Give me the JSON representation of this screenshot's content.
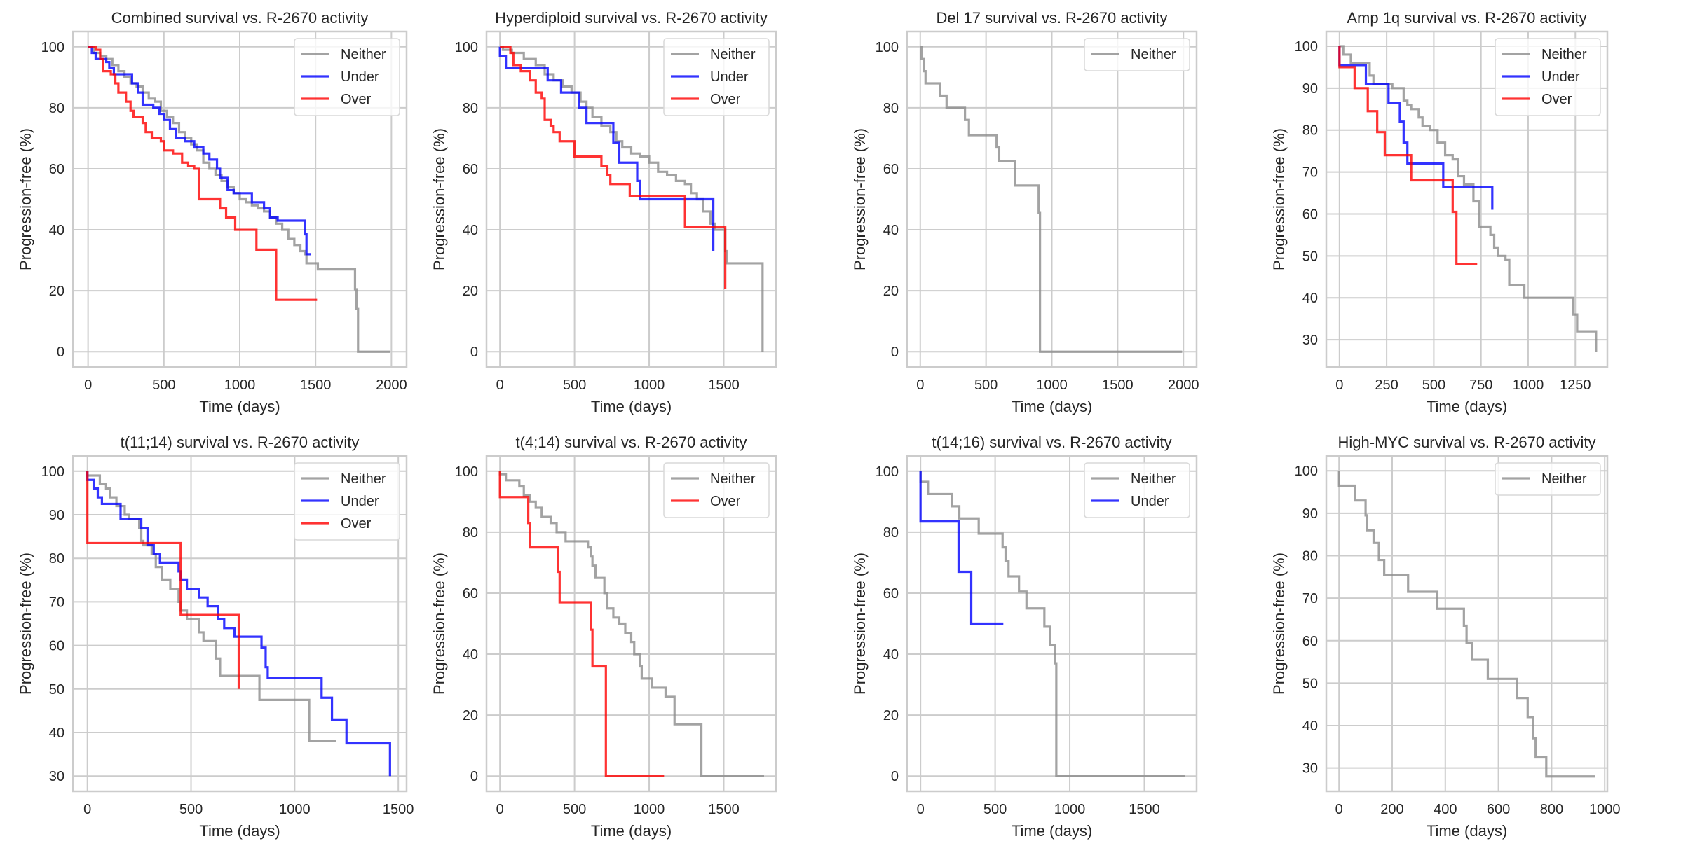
{
  "figure": {
    "colors": {
      "Neither": "#8c8c8c",
      "Under": "#0000ff",
      "Over": "#ff0000",
      "grid": "#cccccc",
      "frame": "#cccccc",
      "legend_border": "#d9d9d9",
      "text": "#262626"
    }
  },
  "chart_data": [
    {
      "type": "line",
      "title": "Combined survival vs. R-2670 activity",
      "xlabel": "Time (days)",
      "ylabel": "Progression-free (%)",
      "xlim": [
        -100,
        2100
      ],
      "ylim": [
        -5,
        105
      ],
      "xticks": [
        0,
        500,
        1000,
        1500,
        2000
      ],
      "yticks": [
        0,
        20,
        40,
        60,
        80,
        100
      ],
      "grid": true,
      "legend": "top-right",
      "series": [
        {
          "name": "Neither",
          "x": [
            0,
            40,
            80,
            120,
            160,
            200,
            240,
            280,
            320,
            360,
            400,
            440,
            480,
            520,
            560,
            600,
            640,
            680,
            720,
            760,
            800,
            840,
            880,
            920,
            960,
            1000,
            1040,
            1080,
            1120,
            1160,
            1200,
            1240,
            1280,
            1320,
            1360,
            1400,
            1430,
            1440,
            1500,
            1515,
            1760,
            1770,
            1780,
            1990
          ],
          "y": [
            100,
            98,
            97,
            96,
            94,
            92,
            90,
            88,
            87,
            85,
            83,
            82,
            79,
            77,
            75,
            72,
            70,
            68,
            66,
            62,
            60,
            58,
            56,
            54,
            52,
            50,
            49,
            48,
            47,
            46,
            44,
            42,
            40,
            37,
            35,
            33,
            32,
            29,
            29,
            27,
            20.5,
            14,
            0,
            0
          ]
        },
        {
          "name": "Under",
          "x": [
            0,
            25,
            50,
            120,
            140,
            170,
            260,
            290,
            330,
            360,
            430,
            470,
            500,
            540,
            580,
            640,
            700,
            760,
            800,
            850,
            870,
            920,
            960,
            1080,
            1120,
            1160,
            1200,
            1250,
            1430,
            1440,
            1470
          ],
          "y": [
            100,
            98,
            96,
            95,
            93,
            91,
            91,
            88,
            85,
            81,
            80,
            78,
            76,
            73,
            70,
            69,
            67,
            65,
            63,
            60,
            57,
            53,
            52,
            49,
            49,
            47,
            44,
            43,
            38.5,
            32,
            32
          ]
        },
        {
          "name": "Over",
          "x": [
            0,
            50,
            80,
            100,
            150,
            180,
            200,
            250,
            280,
            300,
            360,
            380,
            420,
            480,
            500,
            560,
            620,
            660,
            700,
            730,
            750,
            870,
            910,
            970,
            1110,
            1240,
            1510
          ],
          "y": [
            100,
            99,
            96,
            92,
            91,
            88,
            85,
            82,
            79,
            77,
            75,
            72,
            70,
            69,
            66,
            65,
            62,
            61,
            60,
            50,
            50,
            47,
            44,
            40,
            33.5,
            17,
            17
          ]
        }
      ]
    },
    {
      "type": "line",
      "title": "Hyperdiploid survival vs. R-2670 activity",
      "xlabel": "Time (days)",
      "ylabel": "Progression-free (%)",
      "xlim": [
        -90,
        1850
      ],
      "ylim": [
        -5,
        105
      ],
      "xticks": [
        0,
        500,
        1000,
        1500
      ],
      "yticks": [
        0,
        20,
        40,
        60,
        80,
        100
      ],
      "grid": true,
      "legend": "top-right",
      "series": [
        {
          "name": "Neither",
          "x": [
            0,
            20,
            80,
            160,
            240,
            300,
            360,
            420,
            480,
            540,
            580,
            620,
            680,
            740,
            780,
            820,
            880,
            940,
            1000,
            1060,
            1120,
            1180,
            1240,
            1280,
            1320,
            1340,
            1360,
            1410,
            1420,
            1440,
            1510,
            1520,
            1760
          ],
          "y": [
            100,
            99,
            98,
            96,
            94,
            91,
            89,
            87,
            85,
            82,
            80,
            77,
            74,
            72,
            69,
            67,
            65,
            64,
            62,
            59,
            58,
            56,
            55,
            52,
            50,
            50,
            46,
            42,
            42,
            40,
            33,
            29,
            0
          ]
        },
        {
          "name": "Under",
          "x": [
            0,
            40,
            260,
            320,
            410,
            530,
            580,
            760,
            800,
            920,
            940,
            1430
          ],
          "y": [
            97,
            93,
            93,
            89,
            85,
            80,
            75,
            68.5,
            62,
            56,
            50,
            33
          ]
        },
        {
          "name": "Over",
          "x": [
            0,
            70,
            90,
            140,
            200,
            240,
            280,
            300,
            340,
            360,
            400,
            500,
            520,
            680,
            720,
            740,
            820,
            870,
            1240,
            1510
          ],
          "y": [
            100,
            98,
            94,
            92,
            89,
            85,
            83,
            76,
            74,
            72,
            69,
            64,
            64,
            61,
            58,
            55,
            55,
            51,
            41,
            20.5
          ]
        }
      ]
    },
    {
      "type": "line",
      "title": "Del 17 survival vs. R-2670 activity",
      "xlabel": "Time (days)",
      "ylabel": "Progression-free (%)",
      "xlim": [
        -100,
        2100
      ],
      "ylim": [
        -5,
        105
      ],
      "xticks": [
        0,
        500,
        1000,
        1500,
        2000
      ],
      "yticks": [
        0,
        20,
        40,
        60,
        80,
        100
      ],
      "grid": true,
      "legend": "top-right",
      "series": [
        {
          "name": "Neither",
          "x": [
            0,
            10,
            30,
            40,
            150,
            200,
            340,
            370,
            580,
            600,
            720,
            900,
            910,
            1990
          ],
          "y": [
            100,
            96,
            92,
            88,
            84,
            80,
            76,
            71,
            67,
            62.5,
            54.5,
            45.5,
            0,
            0
          ]
        }
      ]
    },
    {
      "type": "line",
      "title": "Amp 1q survival vs. R-2670 activity",
      "xlabel": "Time (days)",
      "ylabel": "Progression-free (%)",
      "xlim": [
        -70,
        1420
      ],
      "ylim": [
        23.5,
        103.5
      ],
      "xticks": [
        0,
        250,
        500,
        750,
        1000,
        1250
      ],
      "yticks": [
        30,
        40,
        50,
        60,
        70,
        80,
        90,
        100
      ],
      "grid": true,
      "legend": "top-right",
      "series": [
        {
          "name": "Neither",
          "x": [
            0,
            20,
            60,
            140,
            160,
            180,
            280,
            340,
            360,
            380,
            420,
            440,
            480,
            520,
            560,
            600,
            630,
            660,
            710,
            720,
            740,
            800,
            820,
            840,
            880,
            900,
            980,
            1180,
            1240,
            1260,
            1360
          ],
          "y": [
            100,
            98,
            96,
            96,
            93,
            91,
            90,
            87,
            86,
            85,
            83,
            81,
            80,
            77,
            74,
            73,
            69,
            67,
            63,
            63,
            57,
            55,
            52,
            50,
            49,
            43,
            40,
            40,
            36,
            32,
            27
          ]
        },
        {
          "name": "Under",
          "x": [
            0,
            140,
            260,
            320,
            340,
            360,
            550,
            810
          ],
          "y": [
            95.5,
            91,
            86.5,
            82,
            77,
            72,
            66.5,
            61
          ]
        },
        {
          "name": "Over",
          "x": [
            0,
            80,
            150,
            200,
            240,
            380,
            600,
            620,
            730
          ],
          "y": [
            95,
            90,
            84.5,
            79.5,
            74,
            68,
            60.5,
            48,
            48
          ]
        }
      ]
    },
    {
      "type": "line",
      "title": "t(11;14) survival vs. R-2670 activity",
      "xlabel": "Time (days)",
      "ylabel": "Progression-free (%)",
      "xlim": [
        -70,
        1540
      ],
      "ylim": [
        26.5,
        103.5
      ],
      "xticks": [
        0,
        500,
        1000,
        1500
      ],
      "yticks": [
        30,
        40,
        50,
        60,
        70,
        80,
        90,
        100
      ],
      "grid": true,
      "legend": "top-right",
      "series": [
        {
          "name": "Neither",
          "x": [
            0,
            60,
            90,
            110,
            140,
            180,
            200,
            250,
            260,
            270,
            310,
            330,
            360,
            400,
            440,
            450,
            480,
            540,
            560,
            620,
            640,
            820,
            830,
            1060,
            1070,
            1200
          ],
          "y": [
            99,
            97,
            96,
            94,
            92,
            90,
            89,
            87,
            84,
            83,
            81,
            78,
            75,
            73,
            70,
            68,
            66,
            63,
            61,
            57,
            53,
            53,
            47.5,
            47.5,
            38,
            38
          ]
        },
        {
          "name": "Under",
          "x": [
            0,
            30,
            50,
            70,
            160,
            260,
            290,
            320,
            350,
            440,
            450,
            480,
            540,
            580,
            630,
            660,
            710,
            840,
            860,
            870,
            1130,
            1180,
            1250,
            1460
          ],
          "y": [
            98,
            96,
            94,
            92.5,
            89,
            87,
            83,
            81,
            79,
            77,
            75,
            73,
            71,
            69,
            66,
            64,
            62,
            59.5,
            55,
            52.5,
            48,
            43,
            37.5,
            30
          ]
        },
        {
          "name": "Over",
          "x": [
            0,
            440,
            450,
            720,
            730
          ],
          "y": [
            83.5,
            83.5,
            67,
            67,
            50
          ]
        }
      ]
    },
    {
      "type": "line",
      "title": "t(4;14) survival vs. R-2670 activity",
      "xlabel": "Time (days)",
      "ylabel": "Progression-free (%)",
      "xlim": [
        -90,
        1850
      ],
      "ylim": [
        -5,
        105
      ],
      "xticks": [
        0,
        500,
        1000,
        1500
      ],
      "yticks": [
        0,
        20,
        40,
        60,
        80,
        100
      ],
      "grid": true,
      "legend": "top-right",
      "series": [
        {
          "name": "Neither",
          "x": [
            0,
            40,
            130,
            160,
            200,
            240,
            280,
            340,
            380,
            440,
            590,
            610,
            620,
            640,
            700,
            720,
            760,
            800,
            840,
            880,
            900,
            940,
            950,
            1020,
            1110,
            1170,
            1350,
            1770
          ],
          "y": [
            99,
            97,
            95,
            92,
            90,
            88,
            85,
            83,
            80,
            77,
            75,
            72,
            69,
            65,
            60,
            55,
            52,
            50,
            47,
            44,
            40,
            36,
            32,
            29,
            26,
            17,
            0,
            0
          ]
        },
        {
          "name": "Over",
          "x": [
            0,
            180,
            190,
            200,
            390,
            400,
            610,
            620,
            710,
            1100
          ],
          "y": [
            91.5,
            91.5,
            83,
            75,
            67,
            57,
            48,
            36,
            0,
            0
          ]
        }
      ]
    },
    {
      "type": "line",
      "title": "t(14;16) survival vs. R-2670 activity",
      "xlabel": "Time (days)",
      "ylabel": "Progression-free (%)",
      "xlim": [
        -90,
        1850
      ],
      "ylim": [
        -5,
        105
      ],
      "xticks": [
        0,
        500,
        1000,
        1500
      ],
      "yticks": [
        0,
        20,
        40,
        60,
        80,
        100
      ],
      "grid": true,
      "legend": "top-right",
      "series": [
        {
          "name": "Neither",
          "x": [
            0,
            50,
            210,
            260,
            390,
            550,
            570,
            590,
            660,
            710,
            830,
            870,
            900,
            910,
            1770
          ],
          "y": [
            96.5,
            92.5,
            88.5,
            84.5,
            79.5,
            75,
            70.5,
            65.5,
            60.5,
            55,
            49,
            43,
            37,
            0,
            0
          ]
        },
        {
          "name": "Under",
          "x": [
            0,
            255,
            340,
            555
          ],
          "y": [
            83.5,
            67,
            50,
            50
          ]
        }
      ]
    },
    {
      "type": "line",
      "title": "High-MYC survival vs. R-2670 activity",
      "xlabel": "Time (days)",
      "ylabel": "Progression-free (%)",
      "xlim": [
        -48,
        1010
      ],
      "ylim": [
        24.5,
        103.5
      ],
      "xticks": [
        0,
        200,
        400,
        600,
        800,
        1000
      ],
      "yticks": [
        30,
        40,
        50,
        60,
        70,
        80,
        90,
        100
      ],
      "grid": true,
      "legend": "top-right",
      "series": [
        {
          "name": "Neither",
          "x": [
            0,
            60,
            100,
            105,
            130,
            150,
            170,
            260,
            370,
            470,
            480,
            500,
            560,
            670,
            710,
            730,
            740,
            780,
            965
          ],
          "y": [
            96.5,
            93,
            89.5,
            86,
            83,
            79,
            75.5,
            71.5,
            67.5,
            63.5,
            59.5,
            55.5,
            51,
            46.5,
            42,
            37,
            32.5,
            28,
            28
          ]
        }
      ]
    }
  ]
}
